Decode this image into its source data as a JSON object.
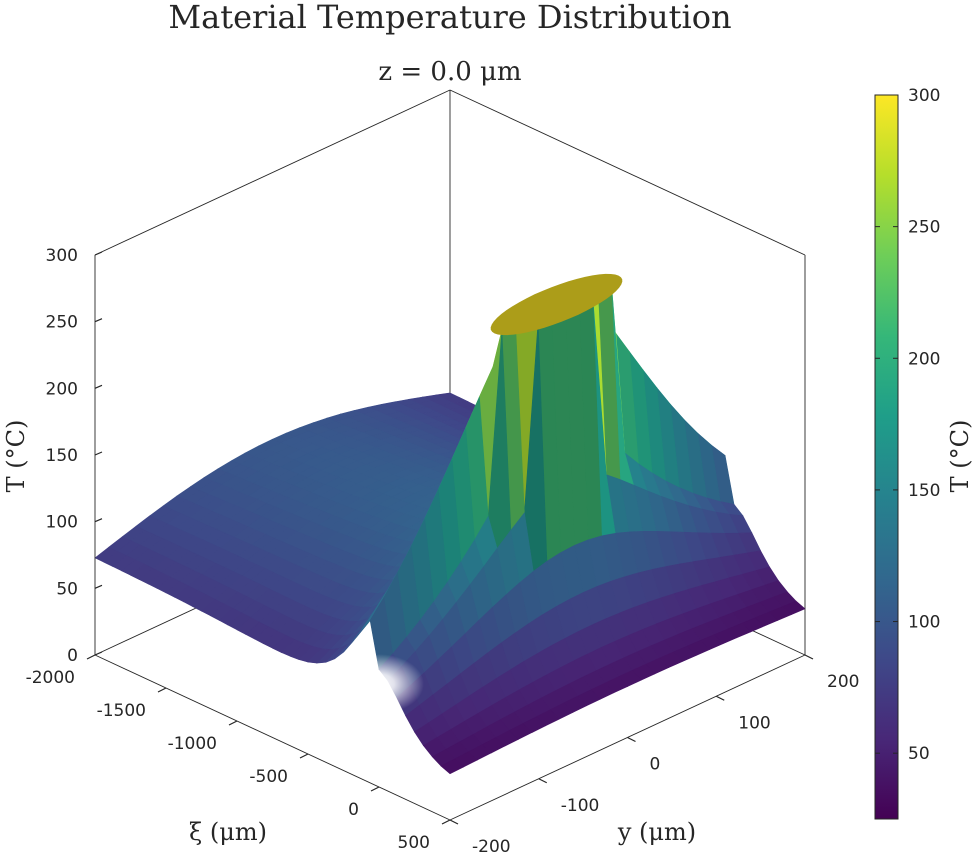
{
  "chart_data": {
    "type": "surface",
    "title": "Material Temperature Distribution",
    "subtitle": "z = 0.0 μm",
    "xlabel": "ξ (μm)",
    "ylabel": "y (μm)",
    "zlabel": "T (°C)",
    "colorbar_label": "T (°C)",
    "colormap": "viridis",
    "xlim": [
      -2000,
      500
    ],
    "ylim": [
      -200,
      200
    ],
    "zlim": [
      0,
      300
    ],
    "clim": [
      25,
      300
    ],
    "x_ticks": [
      "-2000",
      "-1500",
      "-1000",
      "-500",
      "0",
      "500"
    ],
    "y_ticks": [
      "-200",
      "-100",
      "0",
      "100",
      "200"
    ],
    "z_ticks": [
      "0",
      "50",
      "100",
      "150",
      "200",
      "250",
      "300"
    ],
    "colorbar_ticks": [
      "50",
      "100",
      "150",
      "200",
      "250",
      "300"
    ],
    "colorbar_tick_values": [
      50,
      100,
      150,
      200,
      250,
      300
    ],
    "peak": {
      "xi": 0,
      "y": 0,
      "T": 300,
      "plateau_radius": 70
    },
    "grid": false,
    "colors": {
      "axis": "#262626",
      "viridis_stops": [
        "#440154",
        "#482878",
        "#3e4989",
        "#31688e",
        "#26828e",
        "#1f9e89",
        "#35b779",
        "#6ece58",
        "#b5de2b",
        "#fde725"
      ]
    }
  }
}
